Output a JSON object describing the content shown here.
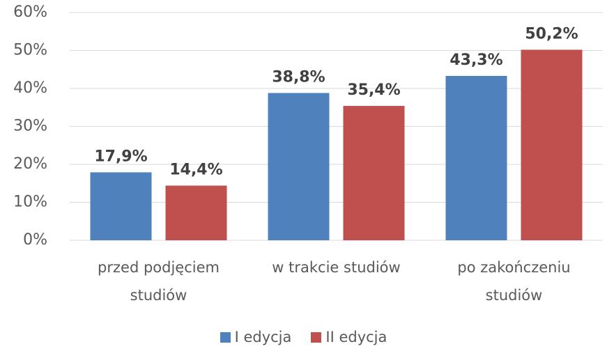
{
  "chart_data": {
    "type": "bar",
    "categories": [
      "przed podjęciem studiów",
      "w trakcie studiów",
      "po zakończeniu studiów"
    ],
    "series": [
      {
        "name": "I edycja",
        "color": "#4f81bd",
        "values": [
          17.9,
          38.8,
          43.3
        ],
        "value_labels": [
          "17,9%",
          "38,8%",
          "43,3%"
        ]
      },
      {
        "name": "II edycja",
        "color": "#c0504d",
        "values": [
          14.4,
          35.4,
          50.2
        ],
        "value_labels": [
          "14,4%",
          "35,4%",
          "50,2%"
        ]
      }
    ],
    "ylim": [
      0,
      60
    ],
    "yticks": [
      {
        "value": 0,
        "label": "0%"
      },
      {
        "value": 10,
        "label": "10%"
      },
      {
        "value": 20,
        "label": "20%"
      },
      {
        "value": 30,
        "label": "30%"
      },
      {
        "value": 40,
        "label": "40%"
      },
      {
        "value": 50,
        "label": "50%"
      },
      {
        "value": 60,
        "label": "60%"
      }
    ],
    "grid": true,
    "legend": "bottom"
  }
}
